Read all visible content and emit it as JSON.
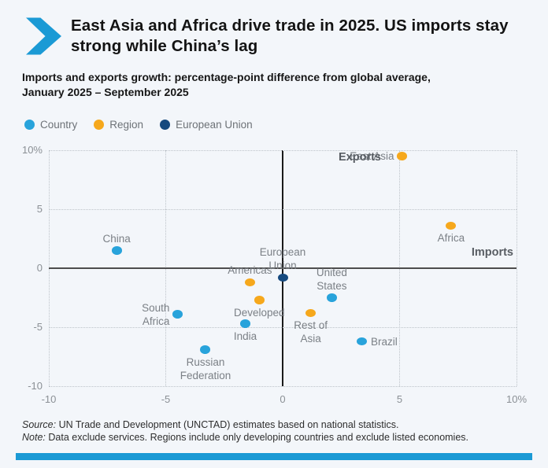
{
  "header": {
    "title": "East Asia and Africa drive trade in 2025. US imports stay strong while China’s lag",
    "subtitle": "Imports and exports growth: percentage-point difference from global average, January 2025 – September 2025"
  },
  "legend": {
    "position": "top-left",
    "items": [
      {
        "key": "country",
        "label": "Country",
        "color": "#28a3db"
      },
      {
        "key": "region",
        "label": "Region",
        "color": "#f6a81c"
      },
      {
        "key": "eu",
        "label": "European Union",
        "color": "#15497e"
      }
    ]
  },
  "chart_data": {
    "type": "scatter",
    "xlabel": "Imports",
    "ylabel": "Exports",
    "xlim": [
      -10,
      10
    ],
    "ylim": [
      -10,
      10
    ],
    "grid": true,
    "x_ticks": [
      {
        "value": -10,
        "label": "-10"
      },
      {
        "value": -5,
        "label": "-5"
      },
      {
        "value": 0,
        "label": "0"
      },
      {
        "value": 5,
        "label": "5"
      },
      {
        "value": 10,
        "label": "10%"
      }
    ],
    "y_ticks": [
      {
        "value": 10,
        "label": "10%"
      },
      {
        "value": 5,
        "label": "5"
      },
      {
        "value": 0,
        "label": "0"
      },
      {
        "value": -5,
        "label": "-5"
      },
      {
        "value": -10,
        "label": "-10"
      }
    ],
    "points": [
      {
        "label": "China",
        "group": "country",
        "x": -7.1,
        "y": 1.5,
        "label_pos": "above"
      },
      {
        "label": "South\nAfrica",
        "group": "country",
        "x": -4.5,
        "y": -3.9,
        "label_pos": "left"
      },
      {
        "label": "Russian\nFederation",
        "group": "country",
        "x": -3.3,
        "y": -6.9,
        "label_pos": "below"
      },
      {
        "label": "India",
        "group": "country",
        "x": -1.6,
        "y": -4.7,
        "label_pos": "below"
      },
      {
        "label": "Americas",
        "group": "region",
        "x": -1.4,
        "y": -1.2,
        "label_pos": "above"
      },
      {
        "label": "Developed",
        "group": "region",
        "x": -1.0,
        "y": -2.7,
        "label_pos": "below"
      },
      {
        "label": "European\nUnion",
        "group": "eu",
        "x": 0,
        "y": -0.8,
        "label_pos": "above"
      },
      {
        "label": "Rest of\nAsia",
        "group": "region",
        "x": 1.2,
        "y": -3.8,
        "label_pos": "below"
      },
      {
        "label": "United\nStates",
        "group": "country",
        "x": 2.1,
        "y": -2.5,
        "label_pos": "above"
      },
      {
        "label": "Brazil",
        "group": "country",
        "x": 3.4,
        "y": -6.2,
        "label_pos": "right"
      },
      {
        "label": "East Asia",
        "group": "region",
        "x": 5.1,
        "y": 9.5,
        "label_pos": "left"
      },
      {
        "label": "Africa",
        "group": "region",
        "x": 7.2,
        "y": 3.6,
        "label_pos": "below"
      }
    ]
  },
  "footer": {
    "source_prefix": "Source:",
    "source_text": " UN Trade and Development (UNCTAD) estimates based on national statistics.",
    "note_prefix": "Note:",
    "note_text": " Data exclude services. Regions include only developing countries and exclude listed economies."
  },
  "colors": {
    "accent_blue": "#1b9ad5",
    "background": "#f3f6fa",
    "axis_dark": "#1a1a1a",
    "axis_gray": "#4d4d4d",
    "grid_dotted": "#bdc3c9"
  }
}
